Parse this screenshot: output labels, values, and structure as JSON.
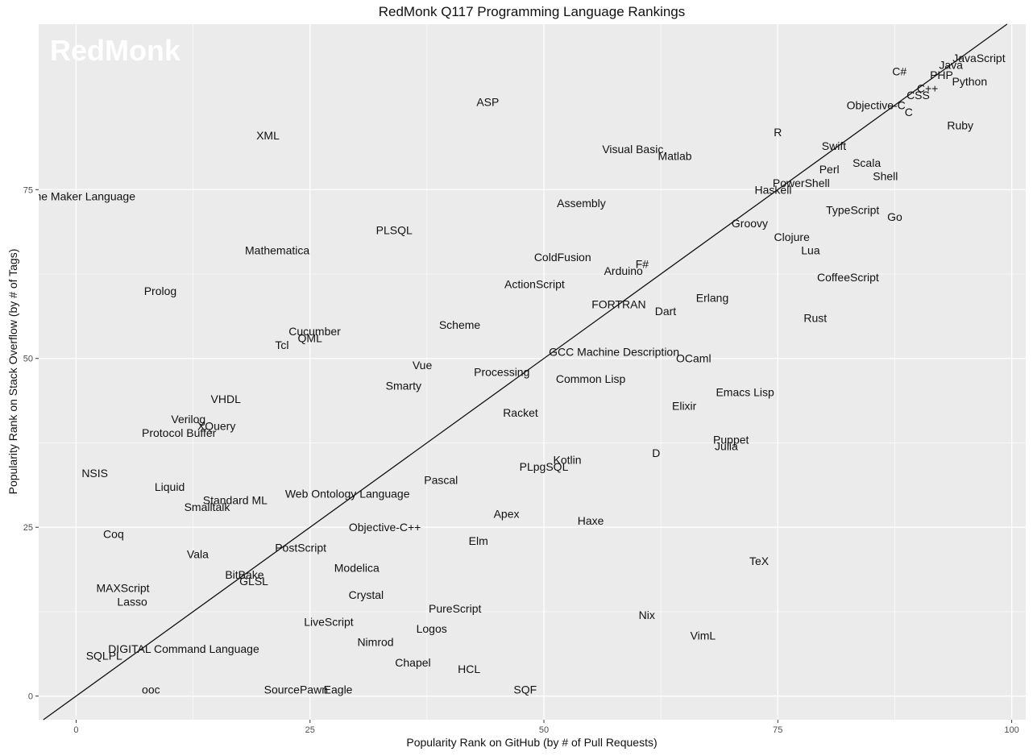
{
  "chart_data": {
    "type": "scatter",
    "title": "RedMonk Q117 Programming Language Rankings",
    "xlabel": "Popularity Rank on GitHub (by # of Pull Requests)",
    "ylabel": "Popularity Rank on Stack Overflow (by # of Tags)",
    "watermark": "RedMonk",
    "xlim": [
      -4,
      101.5
    ],
    "ylim": [
      -3.5,
      99.5
    ],
    "xticks": [
      0,
      25,
      50,
      75,
      100
    ],
    "yticks": [
      0,
      25,
      50,
      75
    ],
    "xtick_labels": [
      "0",
      "25",
      "50",
      "75",
      "100"
    ],
    "ytick_labels": [
      "0",
      "25",
      "50",
      "75"
    ],
    "grid": true,
    "reference_line": "y = x",
    "colors": {
      "panel": "#ebebeb",
      "grid": "#ffffff",
      "text": "#111111",
      "line": "#111111"
    },
    "points": [
      {
        "label": "JavaScript",
        "x": 96.5,
        "y": 94.5
      },
      {
        "label": "Java",
        "x": 93.5,
        "y": 93.5
      },
      {
        "label": "C#",
        "x": 88.0,
        "y": 92.5
      },
      {
        "label": "PHP",
        "x": 92.5,
        "y": 92.0
      },
      {
        "label": "Python",
        "x": 95.5,
        "y": 91.0
      },
      {
        "label": "C++",
        "x": 91.0,
        "y": 90.0
      },
      {
        "label": "CSS",
        "x": 90.0,
        "y": 89.0
      },
      {
        "label": "Objective-C",
        "x": 85.5,
        "y": 87.5
      },
      {
        "label": "C",
        "x": 89.0,
        "y": 86.5
      },
      {
        "label": "Ruby",
        "x": 94.5,
        "y": 84.5
      },
      {
        "label": "R",
        "x": 75.0,
        "y": 83.5
      },
      {
        "label": "Swift",
        "x": 81.0,
        "y": 81.5
      },
      {
        "label": "ASP",
        "x": 44.0,
        "y": 88.0
      },
      {
        "label": "XML",
        "x": 20.5,
        "y": 83.0
      },
      {
        "label": "Visual Basic",
        "x": 59.5,
        "y": 81.0
      },
      {
        "label": "Matlab",
        "x": 64.0,
        "y": 80.0
      },
      {
        "label": "Scala",
        "x": 84.5,
        "y": 79.0
      },
      {
        "label": "Perl",
        "x": 80.5,
        "y": 78.0
      },
      {
        "label": "Shell",
        "x": 86.5,
        "y": 77.0
      },
      {
        "label": "PowerShell",
        "x": 77.5,
        "y": 76.0
      },
      {
        "label": "Haskell",
        "x": 74.5,
        "y": 75.0
      },
      {
        "label": "Game Maker Language",
        "x": 0.0,
        "y": 74.0
      },
      {
        "label": "Assembly",
        "x": 54.0,
        "y": 73.0
      },
      {
        "label": "TypeScript",
        "x": 83.0,
        "y": 72.0
      },
      {
        "label": "Go",
        "x": 87.5,
        "y": 71.0
      },
      {
        "label": "Groovy",
        "x": 72.0,
        "y": 70.0
      },
      {
        "label": "PLSQL",
        "x": 34.0,
        "y": 69.0
      },
      {
        "label": "Clojure",
        "x": 76.5,
        "y": 68.0
      },
      {
        "label": "Lua",
        "x": 78.5,
        "y": 66.0
      },
      {
        "label": "Mathematica",
        "x": 21.5,
        "y": 66.0
      },
      {
        "label": "ColdFusion",
        "x": 52.0,
        "y": 65.0
      },
      {
        "label": "F#",
        "x": 60.5,
        "y": 64.0
      },
      {
        "label": "Arduino",
        "x": 58.5,
        "y": 63.0
      },
      {
        "label": "CoffeeScript",
        "x": 82.5,
        "y": 62.0
      },
      {
        "label": "ActionScript",
        "x": 49.0,
        "y": 61.0
      },
      {
        "label": "Prolog",
        "x": 9.0,
        "y": 60.0
      },
      {
        "label": "Erlang",
        "x": 68.0,
        "y": 59.0
      },
      {
        "label": "FORTRAN",
        "x": 58.0,
        "y": 58.0
      },
      {
        "label": "Dart",
        "x": 63.0,
        "y": 57.0
      },
      {
        "label": "Rust",
        "x": 79.0,
        "y": 56.0
      },
      {
        "label": "Scheme",
        "x": 41.0,
        "y": 55.0
      },
      {
        "label": "Cucumber",
        "x": 25.5,
        "y": 54.0
      },
      {
        "label": "QML",
        "x": 25.0,
        "y": 53.0
      },
      {
        "label": "Tcl",
        "x": 22.0,
        "y": 52.0
      },
      {
        "label": "GCC Machine Description",
        "x": 57.5,
        "y": 51.0
      },
      {
        "label": "OCaml",
        "x": 66.0,
        "y": 50.0
      },
      {
        "label": "Vue",
        "x": 37.0,
        "y": 49.0
      },
      {
        "label": "Processing",
        "x": 45.5,
        "y": 48.0
      },
      {
        "label": "Common Lisp",
        "x": 55.0,
        "y": 47.0
      },
      {
        "label": "Smarty",
        "x": 35.0,
        "y": 46.0
      },
      {
        "label": "Emacs Lisp",
        "x": 71.5,
        "y": 45.0
      },
      {
        "label": "VHDL",
        "x": 16.0,
        "y": 44.0
      },
      {
        "label": "Elixir",
        "x": 65.0,
        "y": 43.0
      },
      {
        "label": "Racket",
        "x": 47.5,
        "y": 42.0
      },
      {
        "label": "Verilog",
        "x": 12.0,
        "y": 41.0
      },
      {
        "label": "XQuery",
        "x": 15.0,
        "y": 40.0
      },
      {
        "label": "Protocol Buffer",
        "x": 11.0,
        "y": 39.0
      },
      {
        "label": "Puppet",
        "x": 70.0,
        "y": 38.0
      },
      {
        "label": "Julia",
        "x": 69.5,
        "y": 37.0
      },
      {
        "label": "D",
        "x": 62.0,
        "y": 36.0
      },
      {
        "label": "Kotlin",
        "x": 52.5,
        "y": 35.0
      },
      {
        "label": "PLpgSQL",
        "x": 50.0,
        "y": 34.0
      },
      {
        "label": "NSIS",
        "x": 2.0,
        "y": 33.0
      },
      {
        "label": "Pascal",
        "x": 39.0,
        "y": 32.0
      },
      {
        "label": "Liquid",
        "x": 10.0,
        "y": 31.0
      },
      {
        "label": "Web Ontology Language",
        "x": 29.0,
        "y": 30.0
      },
      {
        "label": "Standard ML",
        "x": 17.0,
        "y": 29.0
      },
      {
        "label": "Smalltalk",
        "x": 14.0,
        "y": 28.0
      },
      {
        "label": "Apex",
        "x": 46.0,
        "y": 27.0
      },
      {
        "label": "Haxe",
        "x": 55.0,
        "y": 26.0
      },
      {
        "label": "Objective-C++",
        "x": 33.0,
        "y": 25.0
      },
      {
        "label": "Coq",
        "x": 4.0,
        "y": 24.0
      },
      {
        "label": "Elm",
        "x": 43.0,
        "y": 23.0
      },
      {
        "label": "PostScript",
        "x": 24.0,
        "y": 22.0
      },
      {
        "label": "Vala",
        "x": 13.0,
        "y": 21.0
      },
      {
        "label": "TeX",
        "x": 73.0,
        "y": 20.0
      },
      {
        "label": "Modelica",
        "x": 30.0,
        "y": 19.0
      },
      {
        "label": "BitBake",
        "x": 18.0,
        "y": 18.0
      },
      {
        "label": "GLSL",
        "x": 19.0,
        "y": 17.0
      },
      {
        "label": "MAXScript",
        "x": 5.0,
        "y": 16.0
      },
      {
        "label": "Crystal",
        "x": 31.0,
        "y": 15.0
      },
      {
        "label": "Lasso",
        "x": 6.0,
        "y": 14.0
      },
      {
        "label": "PureScript",
        "x": 40.5,
        "y": 13.0
      },
      {
        "label": "Nix",
        "x": 61.0,
        "y": 12.0
      },
      {
        "label": "LiveScript",
        "x": 27.0,
        "y": 11.0
      },
      {
        "label": "Logos",
        "x": 38.0,
        "y": 10.0
      },
      {
        "label": "VimL",
        "x": 67.0,
        "y": 9.0
      },
      {
        "label": "Nimrod",
        "x": 32.0,
        "y": 8.0
      },
      {
        "label": "DIGITAL Command Language",
        "x": 11.5,
        "y": 7.0
      },
      {
        "label": "SQLPL",
        "x": 3.0,
        "y": 6.0
      },
      {
        "label": "Chapel",
        "x": 36.0,
        "y": 5.0
      },
      {
        "label": "HCL",
        "x": 42.0,
        "y": 4.0
      },
      {
        "label": "ooc",
        "x": 8.0,
        "y": 1.0
      },
      {
        "label": "SourcePawn",
        "x": 23.5,
        "y": 1.0
      },
      {
        "label": "Eagle",
        "x": 28.0,
        "y": 1.0
      },
      {
        "label": "SQF",
        "x": 48.0,
        "y": 1.0
      }
    ]
  }
}
